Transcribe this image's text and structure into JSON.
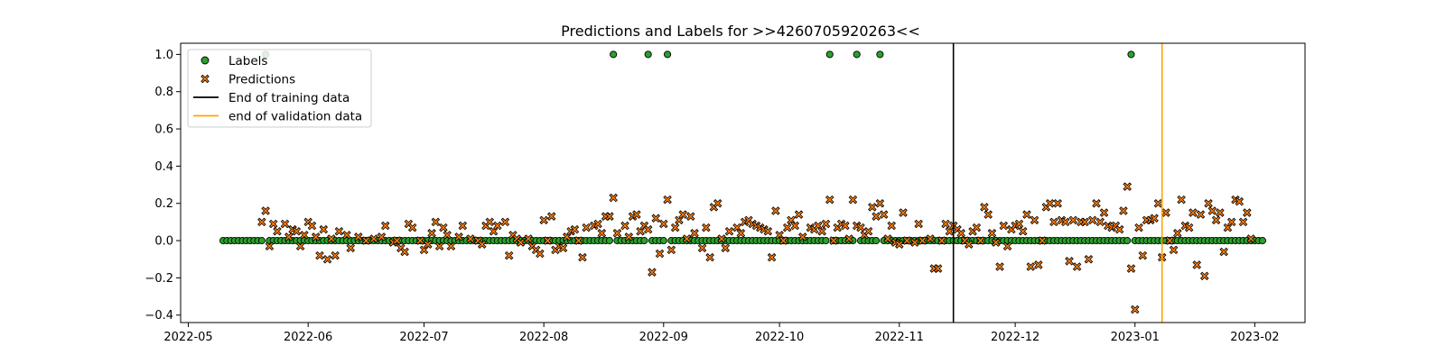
{
  "chart_data": {
    "type": "scatter",
    "title": "Predictions and Labels for >>4260705920263<<",
    "xlabel": "",
    "ylabel": "",
    "x_axis": {
      "kind": "date",
      "range": [
        "2022-04-29",
        "2023-02-14"
      ],
      "ticks": [
        {
          "date": "2022-05-01",
          "label": "2022-05"
        },
        {
          "date": "2022-06-01",
          "label": "2022-06"
        },
        {
          "date": "2022-07-01",
          "label": "2022-07"
        },
        {
          "date": "2022-08-01",
          "label": "2022-08"
        },
        {
          "date": "2022-09-01",
          "label": "2022-09"
        },
        {
          "date": "2022-10-01",
          "label": "2022-10"
        },
        {
          "date": "2022-11-01",
          "label": "2022-11"
        },
        {
          "date": "2022-12-01",
          "label": "2022-12"
        },
        {
          "date": "2023-01-01",
          "label": "2023-01"
        },
        {
          "date": "2023-02-01",
          "label": "2023-02"
        }
      ]
    },
    "y_axis": {
      "range": [
        -0.44,
        1.06
      ],
      "ticks": [
        {
          "value": -0.4,
          "label": "−0.4"
        },
        {
          "value": -0.2,
          "label": "−0.2"
        },
        {
          "value": 0.0,
          "label": "0.0"
        },
        {
          "value": 0.2,
          "label": "0.2"
        },
        {
          "value": 0.4,
          "label": "0.4"
        },
        {
          "value": 0.6,
          "label": "0.6"
        },
        {
          "value": 0.8,
          "label": "0.8"
        },
        {
          "value": 1.0,
          "label": "1.0"
        }
      ]
    },
    "grid": false,
    "legend": {
      "position": "top-left",
      "entries": [
        {
          "label": "Labels",
          "marker": "circle",
          "color": "#2ca02c"
        },
        {
          "label": "Predictions",
          "marker": "x",
          "color": "#ff7f0e"
        },
        {
          "label": "End of training data",
          "marker": "line",
          "color": "#000000"
        },
        {
          "label": "end of validation data",
          "marker": "line",
          "color": "#ffa500"
        }
      ]
    },
    "series": [
      {
        "name": "Labels",
        "kind": "daily",
        "start": "2022-05-10",
        "end": "2023-02-03",
        "default_value": 0,
        "positive_dates": [
          "2022-05-21",
          "2022-08-19",
          "2022-08-28",
          "2022-09-02",
          "2022-10-14",
          "2022-10-21",
          "2022-10-27",
          "2022-12-31"
        ]
      },
      {
        "name": "Predictions",
        "points": [
          [
            "2022-05-20",
            0.1
          ],
          [
            "2022-05-21",
            0.16
          ],
          [
            "2022-05-22",
            -0.03
          ],
          [
            "2022-05-23",
            0.09
          ],
          [
            "2022-05-24",
            0.05
          ],
          [
            "2022-05-26",
            0.09
          ],
          [
            "2022-05-27",
            0.02
          ],
          [
            "2022-05-28",
            0.06
          ],
          [
            "2022-05-29",
            0.05
          ],
          [
            "2022-05-30",
            -0.03
          ],
          [
            "2022-05-31",
            0.03
          ],
          [
            "2022-06-01",
            0.1
          ],
          [
            "2022-06-02",
            0.08
          ],
          [
            "2022-06-03",
            0.02
          ],
          [
            "2022-06-04",
            -0.08
          ],
          [
            "2022-06-05",
            0.06
          ],
          [
            "2022-06-06",
            -0.1
          ],
          [
            "2022-06-07",
            0.01
          ],
          [
            "2022-06-08",
            -0.08
          ],
          [
            "2022-06-09",
            0.05
          ],
          [
            "2022-06-11",
            0.03
          ],
          [
            "2022-06-12",
            -0.04
          ],
          [
            "2022-06-14",
            0.02
          ],
          [
            "2022-06-16",
            0.0
          ],
          [
            "2022-06-18",
            0.01
          ],
          [
            "2022-06-20",
            0.02
          ],
          [
            "2022-06-21",
            0.08
          ],
          [
            "2022-06-23",
            -0.01
          ],
          [
            "2022-06-24",
            0.0
          ],
          [
            "2022-06-25",
            -0.04
          ],
          [
            "2022-06-26",
            -0.06
          ],
          [
            "2022-06-27",
            0.09
          ],
          [
            "2022-06-28",
            0.07
          ],
          [
            "2022-06-30",
            0.0
          ],
          [
            "2022-07-01",
            -0.05
          ],
          [
            "2022-07-02",
            -0.02
          ],
          [
            "2022-07-03",
            0.04
          ],
          [
            "2022-07-04",
            0.1
          ],
          [
            "2022-07-05",
            -0.03
          ],
          [
            "2022-07-06",
            0.07
          ],
          [
            "2022-07-07",
            0.03
          ],
          [
            "2022-07-08",
            -0.03
          ],
          [
            "2022-07-10",
            0.02
          ],
          [
            "2022-07-11",
            0.08
          ],
          [
            "2022-07-13",
            0.01
          ],
          [
            "2022-07-15",
            0.0
          ],
          [
            "2022-07-16",
            -0.02
          ],
          [
            "2022-07-17",
            0.08
          ],
          [
            "2022-07-18",
            0.1
          ],
          [
            "2022-07-19",
            0.05
          ],
          [
            "2022-07-20",
            0.08
          ],
          [
            "2022-07-22",
            0.1
          ],
          [
            "2022-07-23",
            -0.08
          ],
          [
            "2022-07-24",
            0.03
          ],
          [
            "2022-07-25",
            0.01
          ],
          [
            "2022-07-26",
            -0.01
          ],
          [
            "2022-07-28",
            0.01
          ],
          [
            "2022-07-29",
            -0.03
          ],
          [
            "2022-07-30",
            -0.05
          ],
          [
            "2022-07-31",
            -0.07
          ],
          [
            "2022-08-01",
            0.11
          ],
          [
            "2022-08-02",
            0.0
          ],
          [
            "2022-08-03",
            0.13
          ],
          [
            "2022-08-04",
            -0.05
          ],
          [
            "2022-08-05",
            -0.03
          ],
          [
            "2022-08-06",
            -0.04
          ],
          [
            "2022-08-07",
            0.02
          ],
          [
            "2022-08-08",
            0.05
          ],
          [
            "2022-08-09",
            0.06
          ],
          [
            "2022-08-10",
            0.0
          ],
          [
            "2022-08-11",
            -0.09
          ],
          [
            "2022-08-12",
            0.07
          ],
          [
            "2022-08-14",
            0.08
          ],
          [
            "2022-08-15",
            0.09
          ],
          [
            "2022-08-16",
            0.04
          ],
          [
            "2022-08-17",
            0.13
          ],
          [
            "2022-08-18",
            0.13
          ],
          [
            "2022-08-19",
            0.23
          ],
          [
            "2022-08-20",
            0.04
          ],
          [
            "2022-08-22",
            0.08
          ],
          [
            "2022-08-23",
            0.02
          ],
          [
            "2022-08-24",
            0.13
          ],
          [
            "2022-08-25",
            0.14
          ],
          [
            "2022-08-26",
            0.05
          ],
          [
            "2022-08-27",
            0.08
          ],
          [
            "2022-08-28",
            0.06
          ],
          [
            "2022-08-29",
            -0.17
          ],
          [
            "2022-08-30",
            0.12
          ],
          [
            "2022-08-31",
            -0.07
          ],
          [
            "2022-09-01",
            0.09
          ],
          [
            "2022-09-02",
            0.22
          ],
          [
            "2022-09-03",
            -0.05
          ],
          [
            "2022-09-04",
            0.07
          ],
          [
            "2022-09-05",
            0.11
          ],
          [
            "2022-09-06",
            0.14
          ],
          [
            "2022-09-07",
            0.01
          ],
          [
            "2022-09-08",
            0.13
          ],
          [
            "2022-09-09",
            0.04
          ],
          [
            "2022-09-11",
            -0.04
          ],
          [
            "2022-09-12",
            0.07
          ],
          [
            "2022-09-13",
            -0.09
          ],
          [
            "2022-09-14",
            0.18
          ],
          [
            "2022-09-15",
            0.2
          ],
          [
            "2022-09-16",
            0.01
          ],
          [
            "2022-09-17",
            -0.04
          ],
          [
            "2022-09-18",
            0.05
          ],
          [
            "2022-09-20",
            0.07
          ],
          [
            "2022-09-21",
            0.04
          ],
          [
            "2022-09-22",
            0.1
          ],
          [
            "2022-09-23",
            0.11
          ],
          [
            "2022-09-24",
            0.09
          ],
          [
            "2022-09-25",
            0.08
          ],
          [
            "2022-09-26",
            0.07
          ],
          [
            "2022-09-27",
            0.06
          ],
          [
            "2022-09-28",
            0.05
          ],
          [
            "2022-09-29",
            -0.09
          ],
          [
            "2022-09-30",
            0.16
          ],
          [
            "2022-10-01",
            0.03
          ],
          [
            "2022-10-02",
            0.0
          ],
          [
            "2022-10-03",
            0.07
          ],
          [
            "2022-10-04",
            0.11
          ],
          [
            "2022-10-05",
            0.08
          ],
          [
            "2022-10-06",
            0.14
          ],
          [
            "2022-10-07",
            0.02
          ],
          [
            "2022-10-09",
            0.07
          ],
          [
            "2022-10-10",
            0.06
          ],
          [
            "2022-10-11",
            0.08
          ],
          [
            "2022-10-12",
            0.05
          ],
          [
            "2022-10-13",
            0.09
          ],
          [
            "2022-10-14",
            0.22
          ],
          [
            "2022-10-15",
            0.0
          ],
          [
            "2022-10-16",
            0.07
          ],
          [
            "2022-10-17",
            0.09
          ],
          [
            "2022-10-18",
            0.08
          ],
          [
            "2022-10-19",
            0.01
          ],
          [
            "2022-10-20",
            0.22
          ],
          [
            "2022-10-21",
            0.08
          ],
          [
            "2022-10-22",
            0.07
          ],
          [
            "2022-10-23",
            0.03
          ],
          [
            "2022-10-24",
            0.05
          ],
          [
            "2022-10-25",
            0.18
          ],
          [
            "2022-10-26",
            0.13
          ],
          [
            "2022-10-27",
            0.2
          ],
          [
            "2022-10-28",
            0.14
          ],
          [
            "2022-10-29",
            0.01
          ],
          [
            "2022-10-30",
            0.08
          ],
          [
            "2022-10-31",
            -0.01
          ],
          [
            "2022-11-01",
            -0.02
          ],
          [
            "2022-11-02",
            0.15
          ],
          [
            "2022-11-03",
            0.0
          ],
          [
            "2022-11-05",
            -0.01
          ],
          [
            "2022-11-06",
            0.09
          ],
          [
            "2022-11-07",
            0.0
          ],
          [
            "2022-11-09",
            0.01
          ],
          [
            "2022-11-10",
            -0.15
          ],
          [
            "2022-11-11",
            -0.15
          ],
          [
            "2022-11-12",
            0.0
          ],
          [
            "2022-11-13",
            0.09
          ],
          [
            "2022-11-14",
            0.05
          ],
          [
            "2022-11-15",
            0.08
          ],
          [
            "2022-11-16",
            0.06
          ],
          [
            "2022-11-17",
            0.04
          ],
          [
            "2022-11-18",
            0.0
          ],
          [
            "2022-11-19",
            -0.02
          ],
          [
            "2022-11-20",
            0.05
          ],
          [
            "2022-11-21",
            0.07
          ],
          [
            "2022-11-22",
            0.0
          ],
          [
            "2022-11-23",
            0.18
          ],
          [
            "2022-11-24",
            0.14
          ],
          [
            "2022-11-25",
            0.04
          ],
          [
            "2022-11-26",
            -0.01
          ],
          [
            "2022-11-27",
            -0.14
          ],
          [
            "2022-11-28",
            0.08
          ],
          [
            "2022-11-29",
            -0.03
          ],
          [
            "2022-11-30",
            0.06
          ],
          [
            "2022-12-01",
            0.08
          ],
          [
            "2022-12-02",
            0.09
          ],
          [
            "2022-12-03",
            0.05
          ],
          [
            "2022-12-04",
            0.14
          ],
          [
            "2022-12-05",
            -0.14
          ],
          [
            "2022-12-06",
            0.11
          ],
          [
            "2022-12-07",
            -0.13
          ],
          [
            "2022-12-08",
            0.0
          ],
          [
            "2022-12-09",
            0.18
          ],
          [
            "2022-12-10",
            0.2
          ],
          [
            "2022-12-11",
            0.1
          ],
          [
            "2022-12-12",
            0.2
          ],
          [
            "2022-12-13",
            0.11
          ],
          [
            "2022-12-14",
            0.1
          ],
          [
            "2022-12-15",
            -0.11
          ],
          [
            "2022-12-16",
            0.11
          ],
          [
            "2022-12-17",
            -0.14
          ],
          [
            "2022-12-18",
            0.1
          ],
          [
            "2022-12-19",
            0.1
          ],
          [
            "2022-12-20",
            -0.1
          ],
          [
            "2022-12-21",
            0.11
          ],
          [
            "2022-12-22",
            0.2
          ],
          [
            "2022-12-23",
            0.1
          ],
          [
            "2022-12-24",
            0.15
          ],
          [
            "2022-12-25",
            0.08
          ],
          [
            "2022-12-26",
            0.07
          ],
          [
            "2022-12-27",
            0.08
          ],
          [
            "2022-12-28",
            0.06
          ],
          [
            "2022-12-29",
            0.16
          ],
          [
            "2022-12-30",
            0.29
          ],
          [
            "2022-12-31",
            -0.15
          ],
          [
            "2023-01-01",
            -0.37
          ],
          [
            "2023-01-02",
            0.07
          ],
          [
            "2023-01-03",
            -0.08
          ],
          [
            "2023-01-04",
            0.11
          ],
          [
            "2023-01-05",
            0.11
          ],
          [
            "2023-01-06",
            0.12
          ],
          [
            "2023-01-07",
            0.2
          ],
          [
            "2023-01-08",
            -0.09
          ],
          [
            "2023-01-09",
            0.15
          ],
          [
            "2023-01-10",
            0.0
          ],
          [
            "2023-01-11",
            -0.05
          ],
          [
            "2023-01-12",
            0.04
          ],
          [
            "2023-01-13",
            0.22
          ],
          [
            "2023-01-14",
            0.08
          ],
          [
            "2023-01-15",
            0.07
          ],
          [
            "2023-01-16",
            0.15
          ],
          [
            "2023-01-17",
            -0.13
          ],
          [
            "2023-01-18",
            0.14
          ],
          [
            "2023-01-19",
            -0.19
          ],
          [
            "2023-01-20",
            0.2
          ],
          [
            "2023-01-21",
            0.16
          ],
          [
            "2023-01-22",
            0.11
          ],
          [
            "2023-01-23",
            0.15
          ],
          [
            "2023-01-24",
            -0.06
          ],
          [
            "2023-01-25",
            0.07
          ],
          [
            "2023-01-26",
            0.1
          ],
          [
            "2023-01-27",
            0.22
          ],
          [
            "2023-01-28",
            0.21
          ],
          [
            "2023-01-29",
            0.1
          ],
          [
            "2023-01-30",
            0.15
          ],
          [
            "2023-01-31",
            0.01
          ]
        ]
      }
    ],
    "vertical_lines": [
      {
        "name": "End of training data",
        "date": "2022-11-15",
        "color": "#000000"
      },
      {
        "name": "end of validation data",
        "date": "2023-01-08",
        "color": "#ffa500"
      }
    ]
  }
}
